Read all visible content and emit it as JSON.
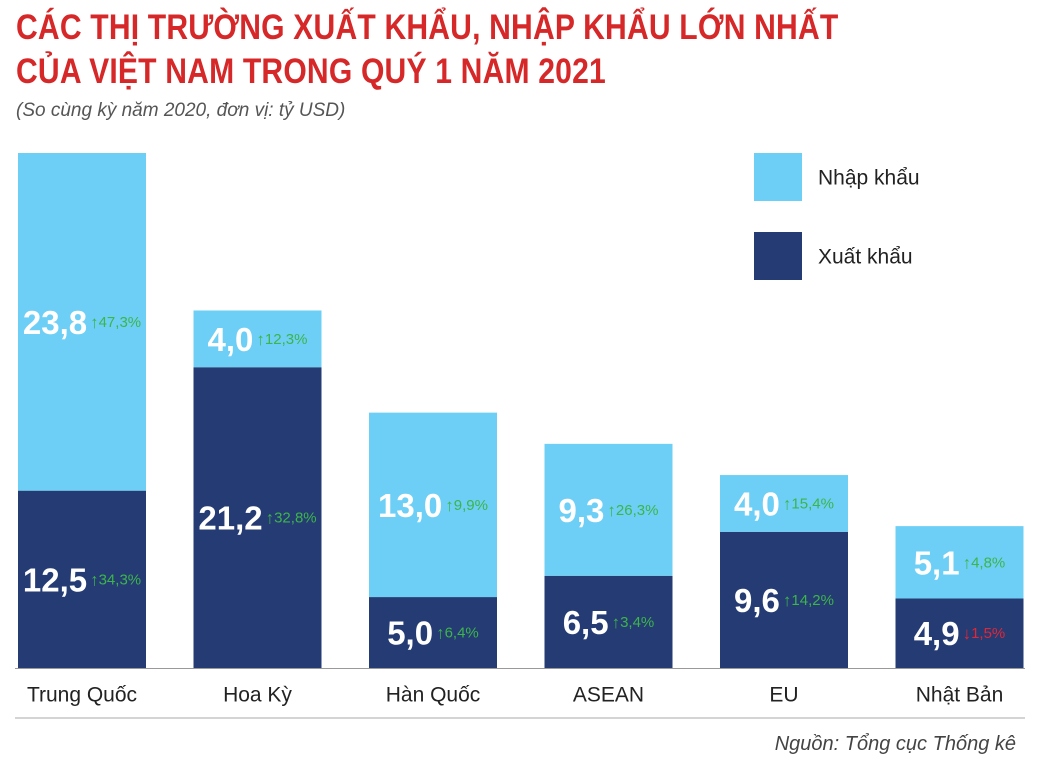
{
  "header": {
    "title_line1": "CÁC THỊ TRƯỜNG XUẤT KHẨU, NHẬP KHẨU LỚN NHẤT",
    "title_line2": "CỦA VIỆT NAM TRONG QUÝ 1 NĂM 2021",
    "subtitle": "(So cùng kỳ năm 2020, đơn vị: tỷ USD)"
  },
  "source": "Nguồn: Tổng cục Thống kê",
  "colors": {
    "import": "#6ecff6",
    "export": "#253b74",
    "up": "#3cb54a",
    "down": "#e32636",
    "axis": "#999999"
  },
  "chart_data": {
    "type": "bar",
    "stacked": true,
    "categories": [
      "Trung Quốc",
      "Hoa Kỳ",
      "Hàn Quốc",
      "ASEAN",
      "EU",
      "Nhật Bản"
    ],
    "series": [
      {
        "name": "Xuất khẩu",
        "values": [
          12.5,
          21.2,
          5.0,
          6.5,
          9.6,
          4.9
        ],
        "labels": [
          "12,5",
          "21,2",
          "5,0",
          "6,5",
          "9,6",
          "4,9"
        ],
        "changes": [
          "34,3%",
          "32,8%",
          "6,4%",
          "3,4%",
          "14,2%",
          "1,5%"
        ],
        "directions": [
          "up",
          "up",
          "up",
          "up",
          "up",
          "down"
        ]
      },
      {
        "name": "Nhập khẩu",
        "values": [
          23.8,
          4.0,
          13.0,
          9.3,
          4.0,
          5.1
        ],
        "labels": [
          "23,8",
          "4,0",
          "13,0",
          "9,3",
          "4,0",
          "5,1"
        ],
        "changes": [
          "47,3%",
          "12,3%",
          "9,9%",
          "26,3%",
          "15,4%",
          "4,8%"
        ],
        "directions": [
          "up",
          "up",
          "up",
          "up",
          "up",
          "up"
        ]
      }
    ],
    "legend": [
      "Nhập khẩu",
      "Xuất khẩu"
    ],
    "legend_position": "top-right",
    "ylim": [
      0,
      36.3
    ],
    "grid": false
  }
}
